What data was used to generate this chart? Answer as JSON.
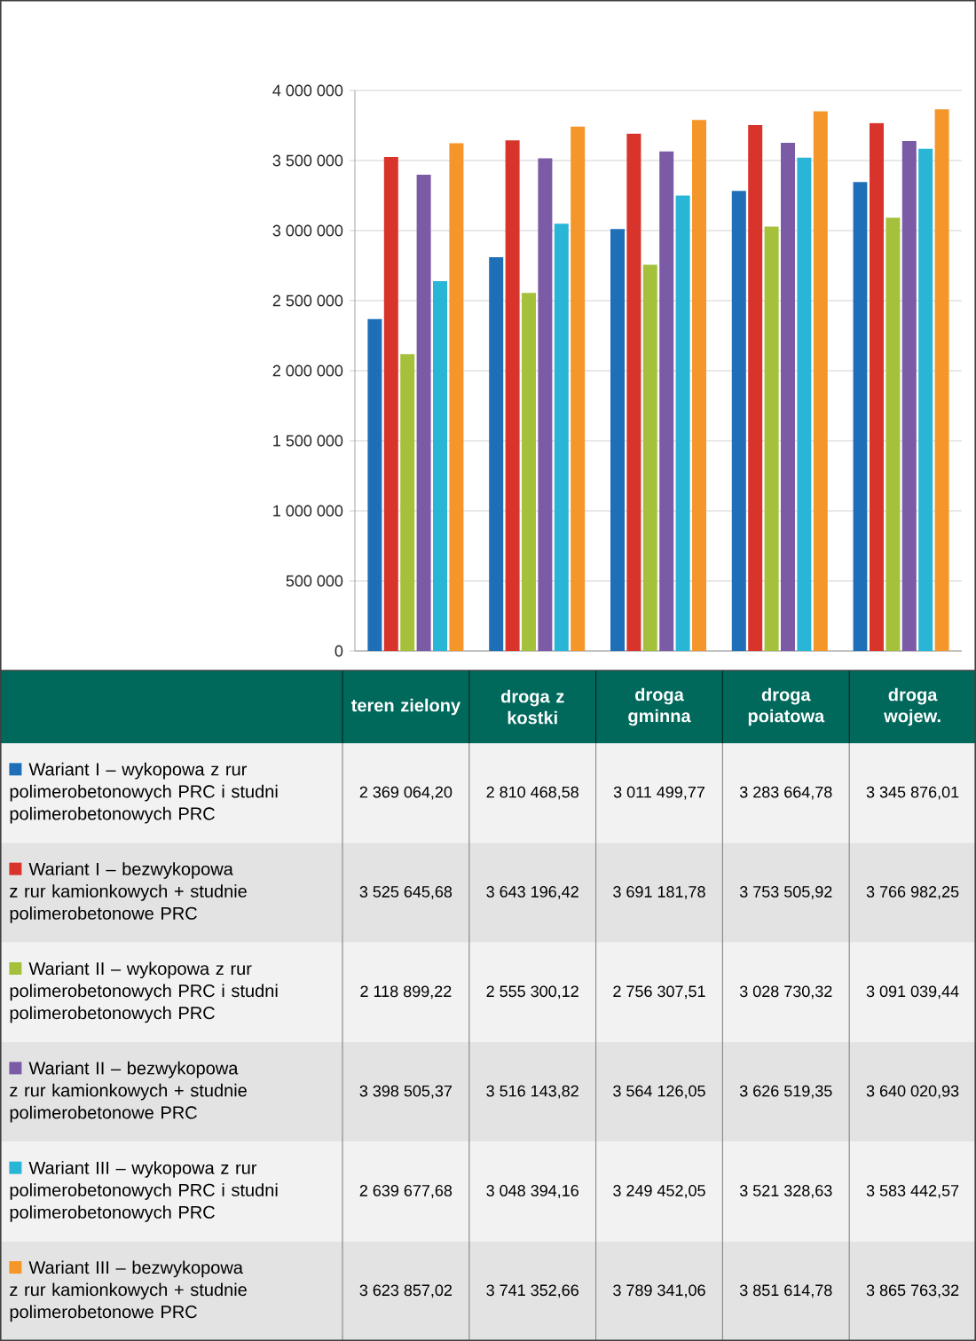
{
  "chart_data": {
    "type": "bar",
    "categories": [
      "teren zielony",
      "droga z kostki",
      "droga gminna",
      "droga poiatowa",
      "droga wojew."
    ],
    "series": [
      {
        "name": "Wariant I – wykopowa z rur polimerobetonowych PRC i studni polimerobetonowych PRC",
        "color": "#1f6fb8",
        "values": [
          2369064.2,
          2810468.58,
          3011499.77,
          3283664.78,
          3345876.01
        ],
        "value_labels": [
          "2 369 064,20",
          "2 810 468,58",
          "3 011 499,77",
          "3 283 664,78",
          "3 345 876,01"
        ]
      },
      {
        "name": "Wariant I – bezwykopowa z rur kamionkowych + studnie polimerobetonowe PRC",
        "color": "#d8342b",
        "values": [
          3525645.68,
          3643196.42,
          3691181.78,
          3753505.92,
          3766982.25
        ],
        "value_labels": [
          "3 525 645,68",
          "3 643 196,42",
          "3 691 181,78",
          "3 753 505,92",
          "3 766 982,25"
        ]
      },
      {
        "name": "Wariant II – wykopowa z rur polimerobetonowych PRC i studni polimerobetonowych PRC",
        "color": "#a5c13b",
        "values": [
          2118899.22,
          2555300.12,
          2756307.51,
          3028730.32,
          3091039.44
        ],
        "value_labels": [
          "2 118 899,22",
          "2 555 300,12",
          "2 756 307,51",
          "3 028 730,32",
          "3 091 039,44"
        ]
      },
      {
        "name": "Wariant II – bezwykopowa z rur kamionkowych + studnie polimerobetonowe PRC",
        "color": "#7b5aa6",
        "values": [
          3398505.37,
          3516143.82,
          3564126.05,
          3626519.35,
          3640020.93
        ],
        "value_labels": [
          "3 398 505,37",
          "3 516 143,82",
          "3 564 126,05",
          "3 626 519,35",
          "3 640 020,93"
        ]
      },
      {
        "name": "Wariant III – wykopowa z rur polimerobetonowych PRC i studni polimerobetonowych PRC",
        "color": "#29b5d6",
        "values": [
          2639677.68,
          3048394.16,
          3249452.05,
          3521328.63,
          3583442.57
        ],
        "value_labels": [
          "2 639 677,68",
          "3 048 394,16",
          "3 249 452,05",
          "3 521 328,63",
          "3 583 442,57"
        ]
      },
      {
        "name": "Wariant III – bezwykopowa z rur kamionkowych + studnie polimerobetonowe PRC",
        "color": "#f5962a",
        "values": [
          3623857.02,
          3741352.66,
          3789341.06,
          3851614.78,
          3865763.32
        ],
        "value_labels": [
          "3 623 857,02",
          "3 741 352,66",
          "3 789 341,06",
          "3 851 614,78",
          "3 865 763,32"
        ]
      }
    ],
    "ylim": [
      0,
      4000000
    ],
    "yticks": [
      0,
      {
        "value": 500000,
        "label": "500 000"
      },
      {
        "value": 1000000,
        "label": "1 000 000"
      },
      {
        "value": 1500000,
        "label": "1 500 000"
      },
      {
        "value": 2000000,
        "label": "2 000 000"
      },
      {
        "value": 2500000,
        "label": "2 500 000"
      },
      {
        "value": 3000000,
        "label": "3 000 000"
      },
      {
        "value": 3500000,
        "label": "3 500 000"
      },
      {
        "value": 4000000,
        "label": "4 000 000"
      }
    ],
    "grid": "y",
    "legend": "bottom",
    "tick_labels": "y"
  }
}
